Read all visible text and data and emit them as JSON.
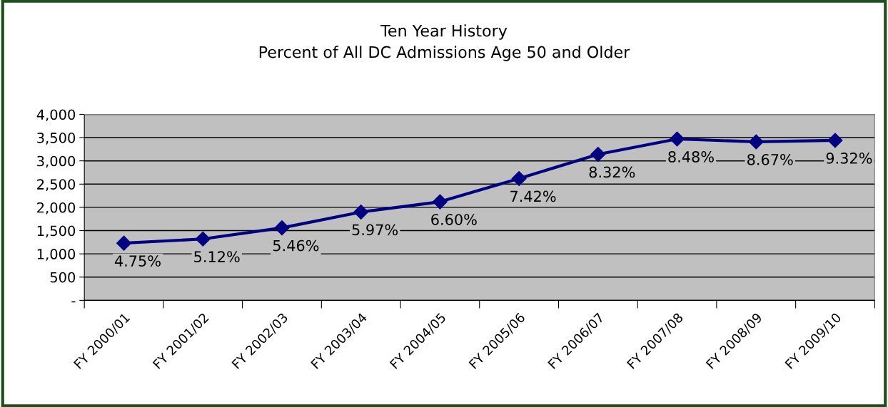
{
  "chart_data": {
    "type": "line",
    "title": "Ten Year History\nPercent of All DC Admissions Age 50 and Older",
    "categories": [
      "FY 2000/01",
      "FY 2001/02",
      "FY 2002/03",
      "FY 2003/04",
      "FY 2004/05",
      "FY 2005/06",
      "FY 2006/07",
      "FY 2007/08",
      "FY 2008/09",
      "FY 2009/10"
    ],
    "series": [
      {
        "color": "#000080",
        "values": [
          1230,
          1320,
          1560,
          1900,
          2120,
          2620,
          3140,
          3470,
          3410,
          3440
        ]
      }
    ],
    "annotations": [
      {
        "text": "4.75%",
        "x": "FY 2000/01",
        "y": 1230
      },
      {
        "text": "5.12%",
        "x": "FY 2001/02",
        "y": 1320
      },
      {
        "text": "5.46%",
        "x": "FY 2002/03",
        "y": 1560
      },
      {
        "text": "5.97%",
        "x": "FY 2003/04",
        "y": 1900
      },
      {
        "text": "6.60%",
        "x": "FY 2004/05",
        "y": 2120
      },
      {
        "text": "7.42%",
        "x": "FY 2005/06",
        "y": 2620
      },
      {
        "text": "8.32%",
        "x": "FY 2006/07",
        "y": 3140
      },
      {
        "text": "8.48%",
        "x": "FY 2007/08",
        "y": 3470
      },
      {
        "text": "8.67%",
        "x": "FY 2008/09",
        "y": 3410
      },
      {
        "text": "9.32%",
        "x": "FY 2009/10",
        "y": 3440
      }
    ],
    "ylim": [
      0,
      4000
    ],
    "yticks": [
      {
        "value": 0,
        "label": "-"
      },
      {
        "value": 500,
        "label": "500"
      },
      {
        "value": 1000,
        "label": "1,000"
      },
      {
        "value": 1500,
        "label": "1,500"
      },
      {
        "value": 2000,
        "label": "2,000"
      },
      {
        "value": 2500,
        "label": "2,500"
      },
      {
        "value": 3000,
        "label": "3,000"
      },
      {
        "value": 3500,
        "label": "3,500"
      },
      {
        "value": 4000,
        "label": "4,000"
      }
    ],
    "grid": "y",
    "marker": "diamond",
    "line_style": "solid",
    "legend": false
  }
}
